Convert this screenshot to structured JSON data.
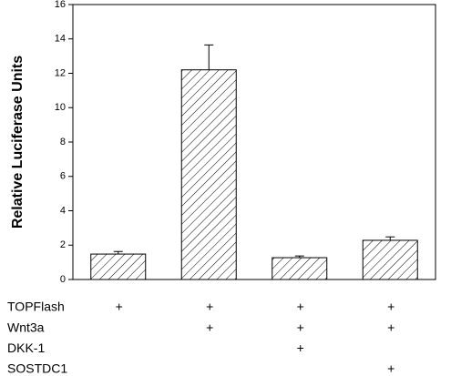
{
  "chart_data": {
    "type": "bar",
    "ylabel": "Relative Luciferase Units",
    "categories": [
      null,
      null,
      null,
      null
    ],
    "values": [
      1.48,
      12.2,
      1.27,
      2.28
    ],
    "errors": [
      0.15,
      1.45,
      0.1,
      0.2
    ],
    "color": "#000000",
    "ylim": [
      0,
      16
    ],
    "yticks": [
      0,
      2,
      4,
      6,
      8,
      10,
      12,
      14,
      16
    ],
    "conditions": [
      {
        "name": "TOPFlash",
        "marks": [
          "+",
          "+",
          "+",
          "+"
        ]
      },
      {
        "name": "Wnt3a",
        "marks": [
          null,
          "+",
          "+",
          "+"
        ]
      },
      {
        "name": "DKK-1",
        "marks": [
          null,
          null,
          "+",
          null
        ]
      },
      {
        "name": "SOSTDC1",
        "marks": [
          null,
          null,
          null,
          "+"
        ]
      }
    ]
  }
}
